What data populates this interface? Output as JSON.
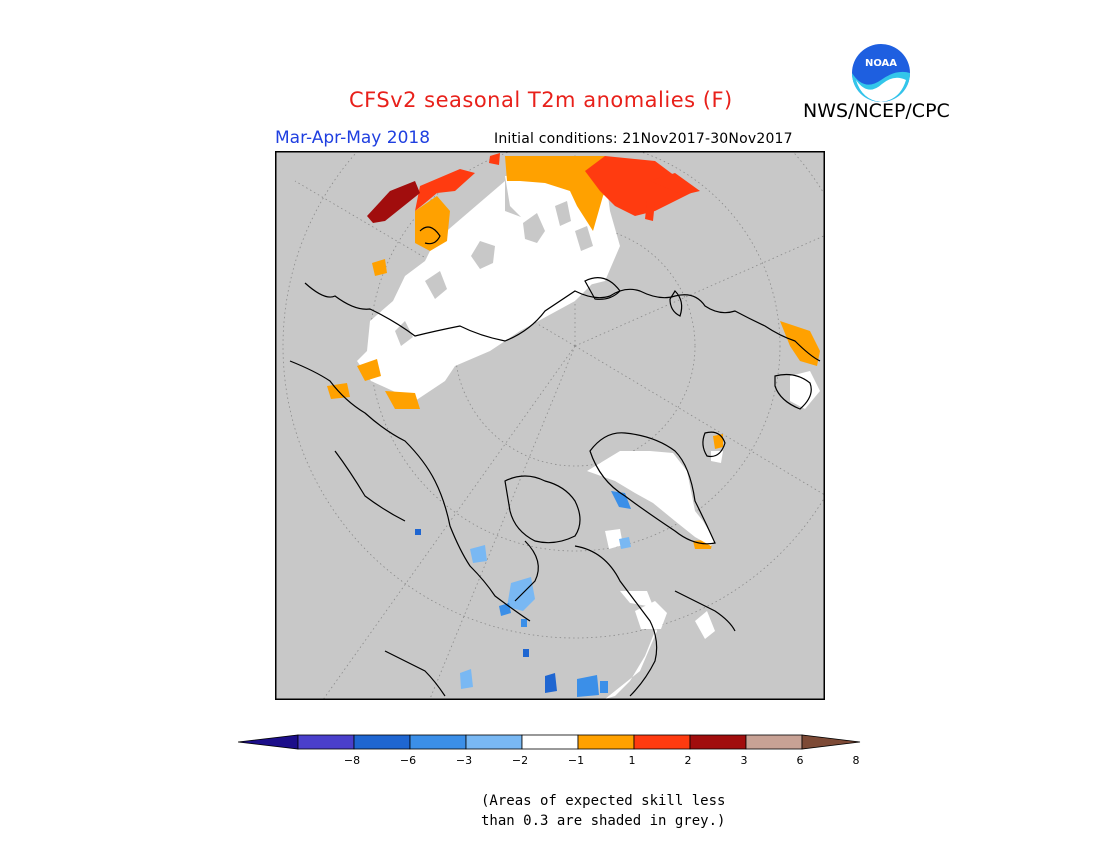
{
  "title": "CFSv2 seasonal T2m anomalies (F)",
  "agency": "NWS/NCEP/CPC",
  "logo_text": "NOAA",
  "season": "Mar-Apr-May 2018",
  "initial_conditions": "Initial conditions: 21Nov2017-30Nov2017",
  "note_line1": "(Areas of expected skill less",
  "note_line2": "than 0.3 are shaded in grey.)",
  "colorbar": {
    "colors": [
      "#1c0e8a",
      "#4a3fcb",
      "#1f66d1",
      "#3b8fe8",
      "#79b8f3",
      "#ffffff",
      "#ffa100",
      "#ff3b10",
      "#a10d0d",
      "#c8a295",
      "#7d4a36"
    ],
    "labels": [
      "−8",
      "−6",
      "−3",
      "−2",
      "−1",
      "1",
      "2",
      "3",
      "6",
      "8"
    ]
  },
  "map": {
    "background": "#c8c8c8",
    "colors": {
      "white": "#ffffff",
      "orange": "#ffa100",
      "red": "#ff3b10",
      "darkred": "#a10d0d",
      "lightblue": "#79b8f3",
      "blue": "#3b8fe8",
      "medblue": "#1f66d1"
    }
  }
}
